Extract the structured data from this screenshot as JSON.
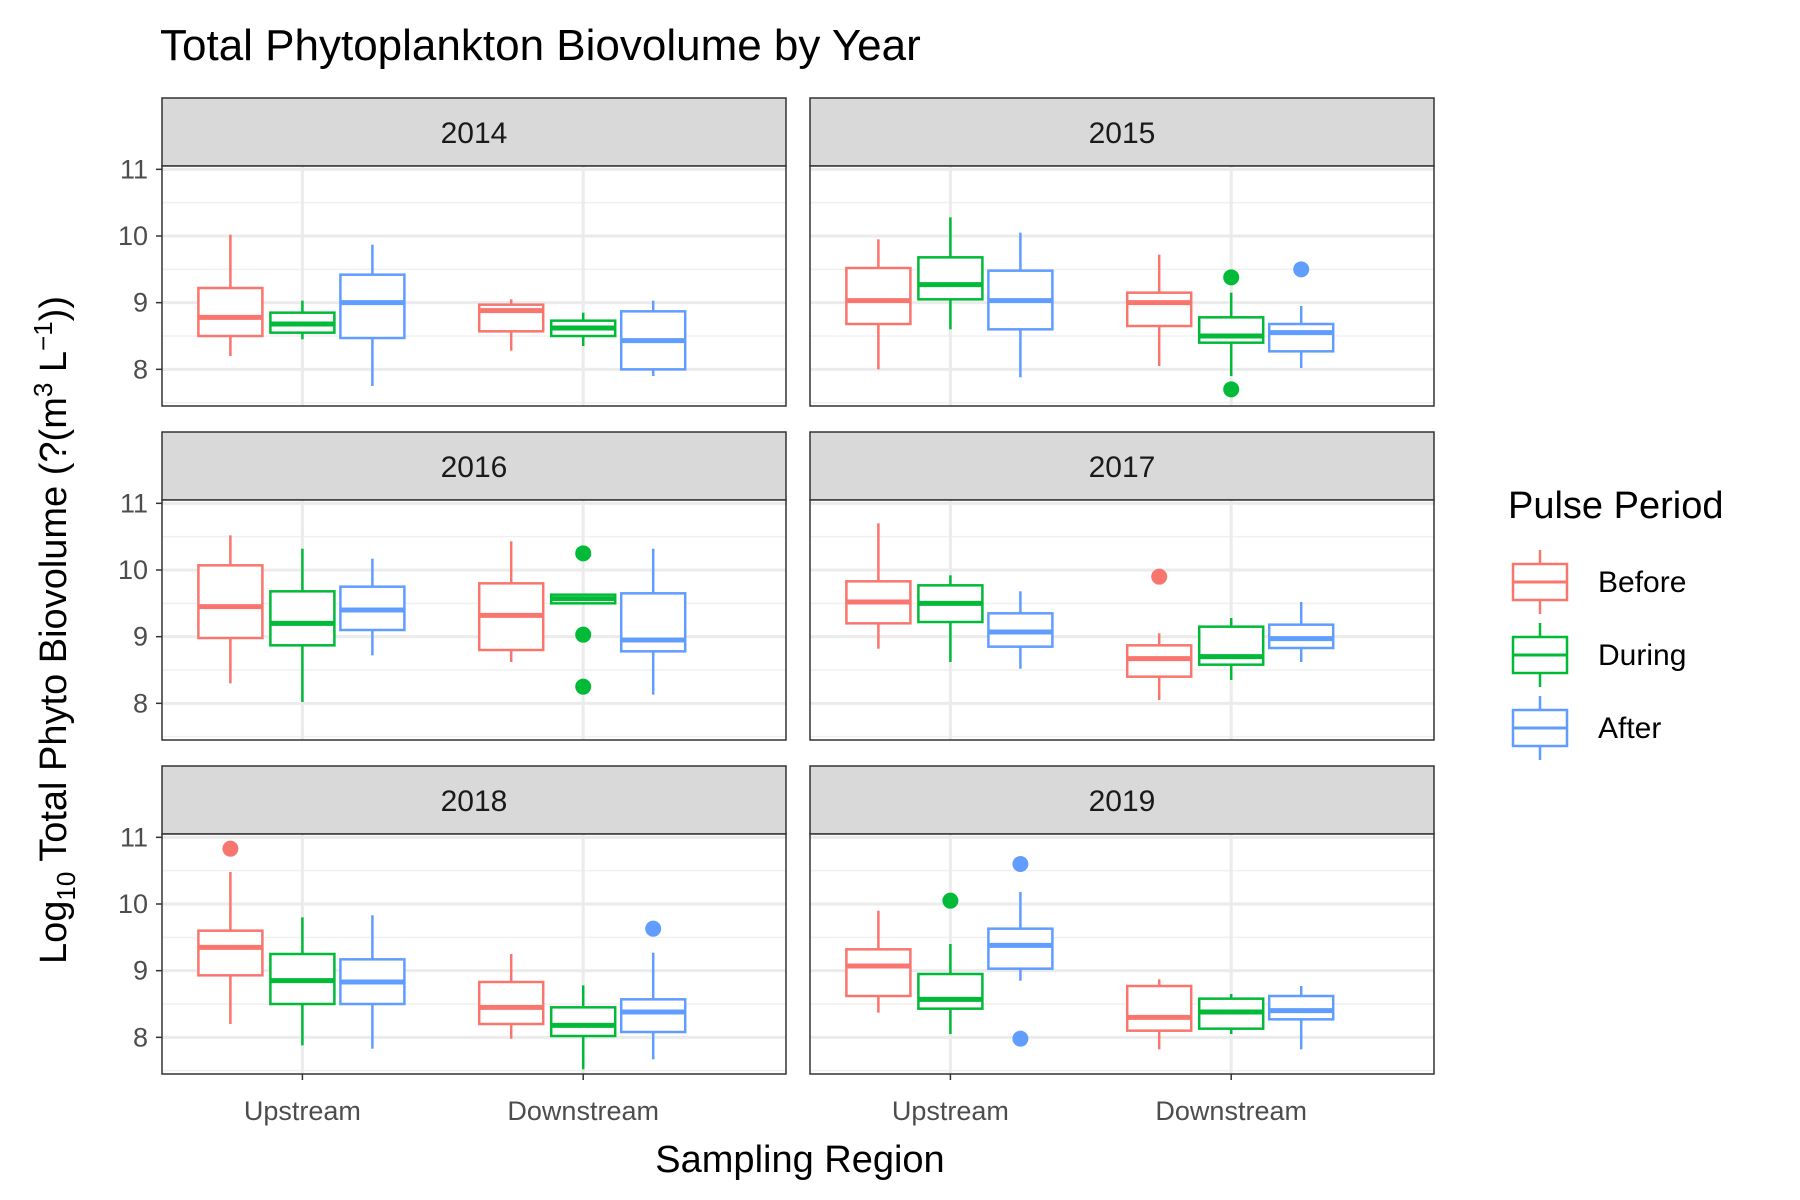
{
  "chart_data": {
    "type": "boxplot",
    "title": "Total Phytoplankton Biovolume by Year",
    "xlabel": "Sampling Region",
    "ylabel": {
      "prefix": "Log",
      "subscript": "10",
      "main": " Total Phyto Biovolume (?(m",
      "sup1": "3",
      "mid": " L",
      "sup2": "−1",
      "suffix": "))"
    },
    "categories": [
      "Upstream",
      "Downstream"
    ],
    "y_ticks": [
      "8",
      "9",
      "10",
      "11"
    ],
    "ylim": [
      7.45,
      11.05
    ],
    "legend": {
      "title": "Pulse Period",
      "items": [
        {
          "name": "Before",
          "color": "#F8766D"
        },
        {
          "name": "During",
          "color": "#00BA38"
        },
        {
          "name": "After",
          "color": "#619CFF"
        }
      ]
    },
    "facets": [
      {
        "label": "2014",
        "groups": [
          {
            "region": "Upstream",
            "series": "Before",
            "whisker_low": 8.2,
            "q1": 8.5,
            "median": 8.78,
            "q3": 9.22,
            "whisker_high": 10.02,
            "outliers": []
          },
          {
            "region": "Upstream",
            "series": "During",
            "whisker_low": 8.45,
            "q1": 8.55,
            "median": 8.68,
            "q3": 8.85,
            "whisker_high": 9.03,
            "outliers": []
          },
          {
            "region": "Upstream",
            "series": "After",
            "whisker_low": 7.75,
            "q1": 8.47,
            "median": 9.0,
            "q3": 9.42,
            "whisker_high": 9.87,
            "outliers": []
          },
          {
            "region": "Downstream",
            "series": "Before",
            "whisker_low": 8.28,
            "q1": 8.57,
            "median": 8.88,
            "q3": 8.97,
            "whisker_high": 9.05,
            "outliers": []
          },
          {
            "region": "Downstream",
            "series": "During",
            "whisker_low": 8.35,
            "q1": 8.5,
            "median": 8.62,
            "q3": 8.73,
            "whisker_high": 8.85,
            "outliers": []
          },
          {
            "region": "Downstream",
            "series": "After",
            "whisker_low": 7.9,
            "q1": 8.0,
            "median": 8.43,
            "q3": 8.87,
            "whisker_high": 9.03,
            "outliers": []
          }
        ]
      },
      {
        "label": "2015",
        "groups": [
          {
            "region": "Upstream",
            "series": "Before",
            "whisker_low": 8.0,
            "q1": 8.68,
            "median": 9.03,
            "q3": 9.52,
            "whisker_high": 9.95,
            "outliers": []
          },
          {
            "region": "Upstream",
            "series": "During",
            "whisker_low": 8.6,
            "q1": 9.05,
            "median": 9.27,
            "q3": 9.68,
            "whisker_high": 10.28,
            "outliers": []
          },
          {
            "region": "Upstream",
            "series": "After",
            "whisker_low": 7.88,
            "q1": 8.6,
            "median": 9.03,
            "q3": 9.48,
            "whisker_high": 10.05,
            "outliers": []
          },
          {
            "region": "Downstream",
            "series": "Before",
            "whisker_low": 8.05,
            "q1": 8.65,
            "median": 9.0,
            "q3": 9.15,
            "whisker_high": 9.72,
            "outliers": []
          },
          {
            "region": "Downstream",
            "series": "During",
            "whisker_low": 7.9,
            "q1": 8.4,
            "median": 8.5,
            "q3": 8.78,
            "whisker_high": 9.15,
            "outliers": [
              9.38,
              7.7
            ]
          },
          {
            "region": "Downstream",
            "series": "After",
            "whisker_low": 8.02,
            "q1": 8.27,
            "median": 8.55,
            "q3": 8.68,
            "whisker_high": 8.95,
            "outliers": [
              9.5
            ]
          }
        ]
      },
      {
        "label": "2016",
        "groups": [
          {
            "region": "Upstream",
            "series": "Before",
            "whisker_low": 8.3,
            "q1": 8.98,
            "median": 9.45,
            "q3": 10.07,
            "whisker_high": 10.52,
            "outliers": []
          },
          {
            "region": "Upstream",
            "series": "During",
            "whisker_low": 8.02,
            "q1": 8.87,
            "median": 9.2,
            "q3": 9.68,
            "whisker_high": 10.32,
            "outliers": []
          },
          {
            "region": "Upstream",
            "series": "After",
            "whisker_low": 8.72,
            "q1": 9.1,
            "median": 9.4,
            "q3": 9.75,
            "whisker_high": 10.17,
            "outliers": []
          },
          {
            "region": "Downstream",
            "series": "Before",
            "whisker_low": 8.62,
            "q1": 8.8,
            "median": 9.32,
            "q3": 9.8,
            "whisker_high": 10.43,
            "outliers": []
          },
          {
            "region": "Downstream",
            "series": "During",
            "whisker_low": 9.5,
            "q1": 9.5,
            "median": 9.57,
            "q3": 9.63,
            "whisker_high": 9.63,
            "outliers": [
              10.25,
              9.03,
              8.25
            ]
          },
          {
            "region": "Downstream",
            "series": "After",
            "whisker_low": 8.13,
            "q1": 8.78,
            "median": 8.95,
            "q3": 9.65,
            "whisker_high": 10.32,
            "outliers": []
          }
        ]
      },
      {
        "label": "2017",
        "groups": [
          {
            "region": "Upstream",
            "series": "Before",
            "whisker_low": 8.82,
            "q1": 9.2,
            "median": 9.52,
            "q3": 9.83,
            "whisker_high": 10.7,
            "outliers": []
          },
          {
            "region": "Upstream",
            "series": "During",
            "whisker_low": 8.62,
            "q1": 9.22,
            "median": 9.5,
            "q3": 9.77,
            "whisker_high": 9.92,
            "outliers": []
          },
          {
            "region": "Upstream",
            "series": "After",
            "whisker_low": 8.52,
            "q1": 8.85,
            "median": 9.07,
            "q3": 9.35,
            "whisker_high": 9.68,
            "outliers": []
          },
          {
            "region": "Downstream",
            "series": "Before",
            "whisker_low": 8.05,
            "q1": 8.4,
            "median": 8.67,
            "q3": 8.87,
            "whisker_high": 9.05,
            "outliers": [
              9.9
            ]
          },
          {
            "region": "Downstream",
            "series": "During",
            "whisker_low": 8.35,
            "q1": 8.58,
            "median": 8.7,
            "q3": 9.15,
            "whisker_high": 9.28,
            "outliers": []
          },
          {
            "region": "Downstream",
            "series": "After",
            "whisker_low": 8.62,
            "q1": 8.83,
            "median": 8.97,
            "q3": 9.18,
            "whisker_high": 9.52,
            "outliers": []
          }
        ]
      },
      {
        "label": "2018",
        "groups": [
          {
            "region": "Upstream",
            "series": "Before",
            "whisker_low": 8.2,
            "q1": 8.93,
            "median": 9.35,
            "q3": 9.6,
            "whisker_high": 10.48,
            "outliers": [
              10.83
            ]
          },
          {
            "region": "Upstream",
            "series": "During",
            "whisker_low": 7.88,
            "q1": 8.5,
            "median": 8.85,
            "q3": 9.25,
            "whisker_high": 9.8,
            "outliers": []
          },
          {
            "region": "Upstream",
            "series": "After",
            "whisker_low": 7.83,
            "q1": 8.5,
            "median": 8.83,
            "q3": 9.17,
            "whisker_high": 9.83,
            "outliers": []
          },
          {
            "region": "Downstream",
            "series": "Before",
            "whisker_low": 7.98,
            "q1": 8.2,
            "median": 8.45,
            "q3": 8.83,
            "whisker_high": 9.25,
            "outliers": []
          },
          {
            "region": "Downstream",
            "series": "During",
            "whisker_low": 7.52,
            "q1": 8.02,
            "median": 8.18,
            "q3": 8.45,
            "whisker_high": 8.78,
            "outliers": []
          },
          {
            "region": "Downstream",
            "series": "After",
            "whisker_low": 7.67,
            "q1": 8.08,
            "median": 8.38,
            "q3": 8.57,
            "whisker_high": 9.27,
            "outliers": [
              9.63
            ]
          }
        ]
      },
      {
        "label": "2019",
        "groups": [
          {
            "region": "Upstream",
            "series": "Before",
            "whisker_low": 8.37,
            "q1": 8.62,
            "median": 9.07,
            "q3": 9.32,
            "whisker_high": 9.9,
            "outliers": []
          },
          {
            "region": "Upstream",
            "series": "During",
            "whisker_low": 8.05,
            "q1": 8.43,
            "median": 8.57,
            "q3": 8.95,
            "whisker_high": 9.4,
            "outliers": [
              10.05
            ]
          },
          {
            "region": "Upstream",
            "series": "After",
            "whisker_low": 8.85,
            "q1": 9.03,
            "median": 9.38,
            "q3": 9.63,
            "whisker_high": 10.18,
            "outliers": [
              10.6,
              7.98
            ]
          },
          {
            "region": "Downstream",
            "series": "Before",
            "whisker_low": 7.82,
            "q1": 8.1,
            "median": 8.3,
            "q3": 8.77,
            "whisker_high": 8.87,
            "outliers": []
          },
          {
            "region": "Downstream",
            "series": "During",
            "whisker_low": 8.05,
            "q1": 8.13,
            "median": 8.38,
            "q3": 8.58,
            "whisker_high": 8.65,
            "outliers": []
          },
          {
            "region": "Downstream",
            "series": "After",
            "whisker_low": 7.82,
            "q1": 8.27,
            "median": 8.4,
            "q3": 8.62,
            "whisker_high": 8.77,
            "outliers": []
          }
        ]
      }
    ]
  }
}
